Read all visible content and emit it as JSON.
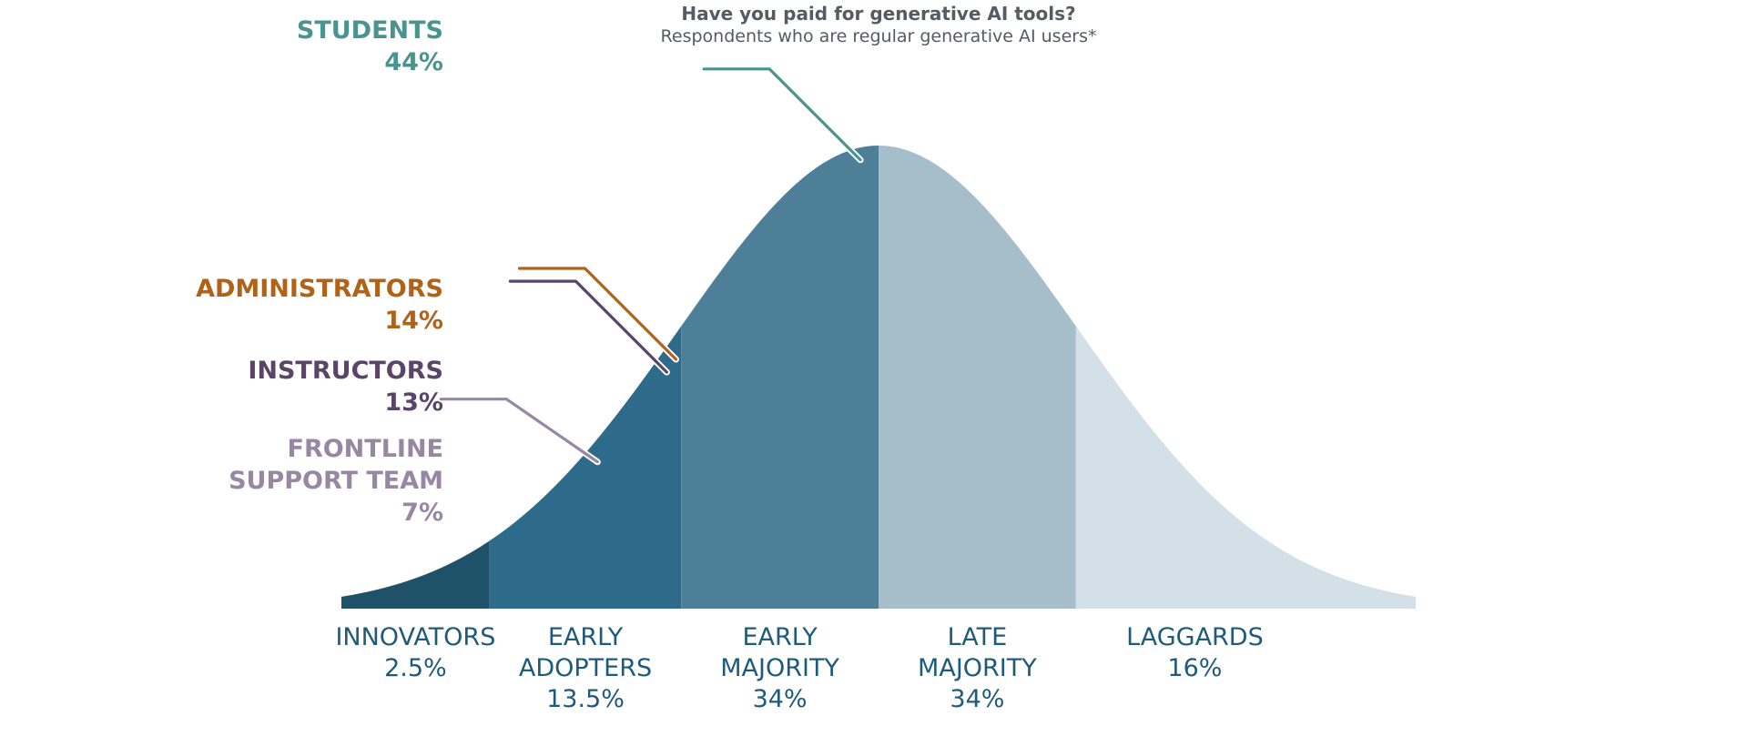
{
  "chart_data": {
    "type": "area",
    "title": "Have you paid for generative AI tools?",
    "subtitle": "Respondents who are regular generative AI users*",
    "segments": [
      {
        "lines": [
          "INNOVATORS",
          "2.5%"
        ],
        "value": 2.5,
        "color": "#1f5169"
      },
      {
        "lines": [
          "EARLY",
          "ADOPTERS",
          "13.5%"
        ],
        "value": 13.5,
        "color": "#2e6a89"
      },
      {
        "lines": [
          "EARLY",
          "MAJORITY",
          "34%"
        ],
        "value": 34,
        "color": "#4e7f98"
      },
      {
        "lines": [
          "LATE",
          "MAJORITY",
          "34%"
        ],
        "value": 34,
        "color": "#a6bdca"
      },
      {
        "lines": [
          "LAGGARDS",
          "16%"
        ],
        "value": 16,
        "color": "#d3e0e7"
      }
    ],
    "groups": [
      {
        "name": "STUDENTS",
        "value": "44%",
        "lines": [
          "STUDENTS",
          "44%"
        ],
        "color": "#4a9490",
        "cumulative_percentile": 44
      },
      {
        "name": "ADMINISTRATORS",
        "value": "14%",
        "lines": [
          "ADMINISTRATORS",
          "14%"
        ],
        "color": "#b06218",
        "cumulative_percentile": 14
      },
      {
        "name": "INSTRUCTORS",
        "value": "13%",
        "lines": [
          "INSTRUCTORS",
          "13%"
        ],
        "color": "#5a4468",
        "cumulative_percentile": 13
      },
      {
        "name": "FRONTLINE SUPPORT TEAM",
        "value": "7%",
        "lines": [
          "FRONTLINE",
          "SUPPORT TEAM",
          "7%"
        ],
        "color": "#9787a3",
        "cumulative_percentile": 7
      }
    ]
  }
}
